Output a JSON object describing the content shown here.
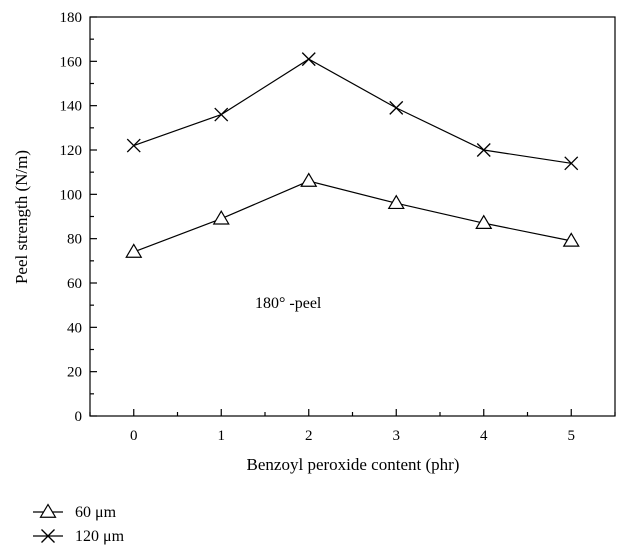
{
  "chart_data": {
    "type": "line",
    "title": "",
    "xlabel": "Benzoyl peroxide content (phr)",
    "ylabel": "Peel strength (N/m)",
    "x": [
      0,
      1,
      2,
      3,
      4,
      5
    ],
    "xlim": [
      -0.5,
      5.5
    ],
    "ylim": [
      0,
      180
    ],
    "x_ticks": [
      "0",
      "1",
      "2",
      "3",
      "4",
      "5"
    ],
    "y_ticks": [
      "0",
      "20",
      "40",
      "60",
      "80",
      "100",
      "120",
      "140",
      "160",
      "180"
    ],
    "grid": false,
    "legend_placement": "bottom-left, below plot",
    "series": [
      {
        "name": "60 μm",
        "marker": "triangle",
        "values": [
          74,
          89,
          106,
          96,
          87,
          79
        ]
      },
      {
        "name": "120 μm",
        "marker": "x",
        "values": [
          122,
          136,
          161,
          139,
          120,
          114
        ]
      }
    ],
    "annotation": "180° -peel"
  }
}
